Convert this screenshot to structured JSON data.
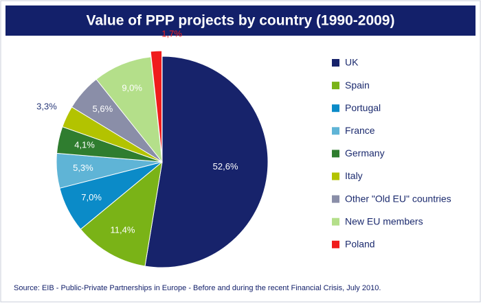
{
  "chart_data": {
    "type": "pie",
    "title": "Value of PPP projects by country (1990-2009)",
    "categories": [
      "UK",
      "Spain",
      "Portugal",
      "France",
      "Germany",
      "Italy",
      "Other \"Old EU\" countries",
      "New EU members",
      "Poland"
    ],
    "values": [
      52.6,
      11.4,
      7.0,
      5.3,
      4.1,
      3.3,
      5.6,
      9.0,
      1.7
    ],
    "value_labels": [
      "52,6%",
      "11,4%",
      "7,0%",
      "5,3%",
      "4,1%",
      "3,3%",
      "5,6%",
      "9,0%",
      "1,7%"
    ],
    "colors": [
      "#17236b",
      "#7ab317",
      "#0b8bc8",
      "#5fb4d6",
      "#2f7d2f",
      "#b3c300",
      "#8a8ea8",
      "#b4df8a",
      "#f01c1c"
    ],
    "legend": "right",
    "source": "Source: EIB - Public-Private Partnerships in Europe - Before and during the recent Financial Crisis, July 2010."
  }
}
